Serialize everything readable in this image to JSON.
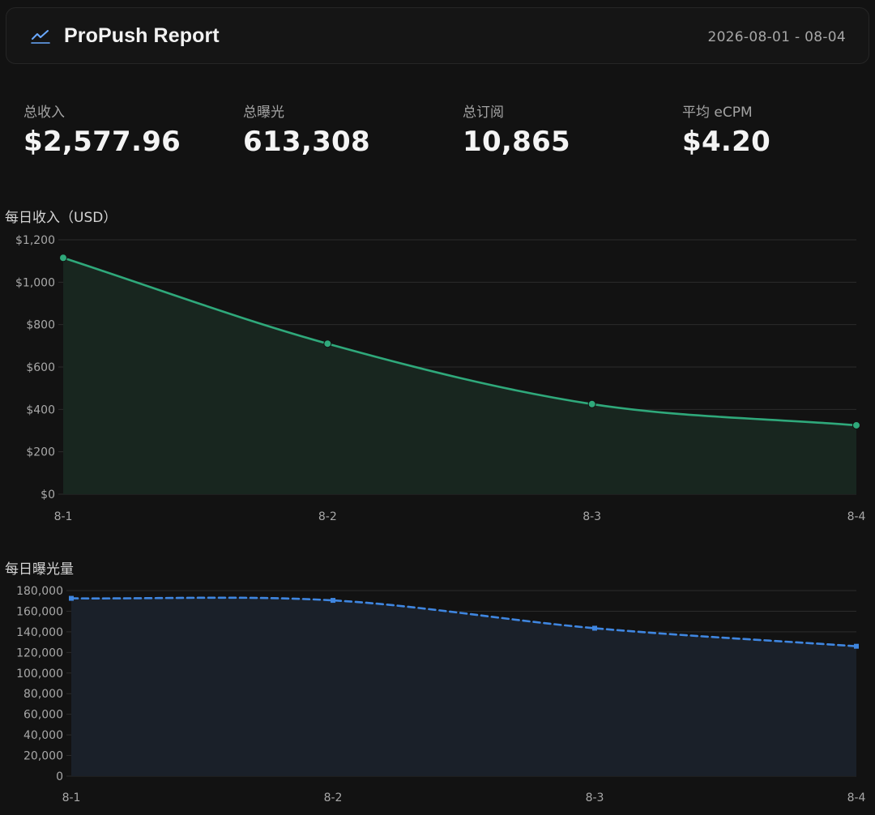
{
  "header": {
    "title": "ProPush Report",
    "date_range": "2026-08-01 - 08-04",
    "logo_icon": "line-chart-icon"
  },
  "kpis": [
    {
      "label": "总收入",
      "value": "$2,577.96"
    },
    {
      "label": "总曝光",
      "value": "613,308"
    },
    {
      "label": "总订阅",
      "value": "10,865"
    },
    {
      "label": "平均 eCPM",
      "value": "$4.20"
    }
  ],
  "colors": {
    "revenue_line": "#2fa97b",
    "revenue_fill": "#18261f",
    "impressions_line": "#3f86e0",
    "impressions_fill": "#1a2029",
    "grid": "#2c2c2c"
  },
  "chart_data": [
    {
      "type": "area",
      "title": "每日收入（USD）",
      "categories": [
        "8-1",
        "8-2",
        "8-3",
        "8-4"
      ],
      "values": [
        1115,
        710,
        425,
        325
      ],
      "ylim": [
        0,
        1200
      ],
      "yticks": [
        0,
        200,
        400,
        600,
        800,
        1000,
        1200
      ],
      "ytick_labels": [
        "$0",
        "$200",
        "$400",
        "$600",
        "$800",
        "$1,000",
        "$1,200"
      ],
      "grid": true,
      "line_style": "solid",
      "markers": "circle"
    },
    {
      "type": "area",
      "title": "每日曝光量",
      "categories": [
        "8-1",
        "8-2",
        "8-3",
        "8-4"
      ],
      "values": [
        172500,
        170500,
        143500,
        126000
      ],
      "ylim": [
        0,
        180000
      ],
      "yticks": [
        0,
        20000,
        40000,
        60000,
        80000,
        100000,
        120000,
        140000,
        160000,
        180000
      ],
      "ytick_labels": [
        "0",
        "20,000",
        "40,000",
        "60,000",
        "80,000",
        "100,000",
        "120,000",
        "140,000",
        "160,000",
        "180,000"
      ],
      "grid": true,
      "line_style": "dashed",
      "markers": "square"
    }
  ]
}
